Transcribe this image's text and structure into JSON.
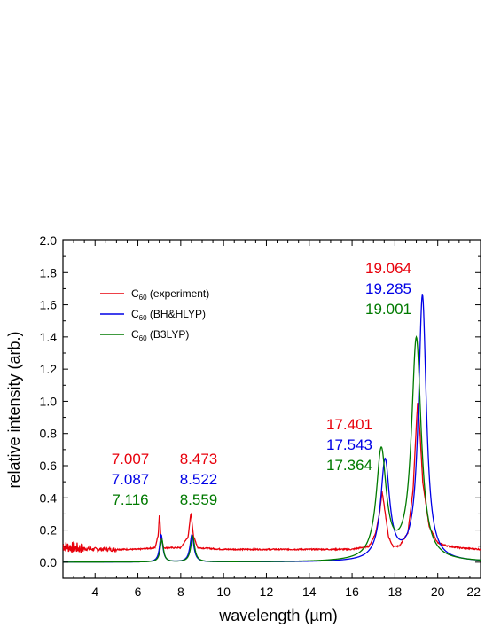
{
  "chart_data": {
    "type": "line",
    "xlabel": "wavelength (µm)",
    "ylabel": "relative intensity (arb.)",
    "xlim": [
      2.5,
      22
    ],
    "ylim": [
      -0.1,
      2.0
    ],
    "xticks": [
      "4",
      "6",
      "8",
      "10",
      "12",
      "14",
      "16",
      "18",
      "20",
      "22"
    ],
    "yticks": [
      "0.0",
      "0.2",
      "0.4",
      "0.6",
      "0.8",
      "1.0",
      "1.2",
      "1.4",
      "1.6",
      "1.8",
      "2.0"
    ],
    "legend_position": "upper-left",
    "series": [
      {
        "name": "C60 (experiment)",
        "legend_base": "C",
        "legend_sub": "60",
        "legend_rest": " (experiment)",
        "color": "#e8000b",
        "x": [
          2.5,
          3.0,
          4.0,
          5.0,
          6.0,
          6.8,
          6.95,
          7.007,
          7.07,
          7.2,
          8.0,
          8.35,
          8.473,
          8.6,
          8.8,
          10.0,
          12.0,
          14.0,
          16.0,
          16.8,
          17.1,
          17.3,
          17.401,
          17.5,
          17.7,
          17.9,
          18.2,
          18.6,
          18.85,
          19.0,
          19.064,
          19.15,
          19.3,
          19.6,
          20.0,
          20.5,
          21.0,
          22.0
        ],
        "y": [
          0.1,
          0.09,
          0.08,
          0.08,
          0.08,
          0.09,
          0.17,
          0.31,
          0.16,
          0.09,
          0.09,
          0.16,
          0.31,
          0.16,
          0.09,
          0.08,
          0.08,
          0.08,
          0.08,
          0.1,
          0.18,
          0.32,
          0.44,
          0.35,
          0.16,
          0.1,
          0.1,
          0.18,
          0.45,
          0.85,
          1.0,
          0.85,
          0.5,
          0.22,
          0.12,
          0.1,
          0.09,
          0.08
        ]
      },
      {
        "name": "C60 (BH&HLYP)",
        "legend_base": "C",
        "legend_sub": "60",
        "legend_rest": " (BH&HLYP)",
        "color": "#0000e6",
        "peaks": [
          {
            "x": 7.087,
            "h": 0.17,
            "w": 0.09
          },
          {
            "x": 8.522,
            "h": 0.17,
            "w": 0.11
          },
          {
            "x": 17.543,
            "h": 0.62,
            "w": 0.25
          },
          {
            "x": 19.285,
            "h": 1.65,
            "w": 0.22
          }
        ]
      },
      {
        "name": "C60 (B3LYP)",
        "legend_base": "C",
        "legend_sub": "60",
        "legend_rest": " (B3LYP)",
        "color": "#007a00",
        "peaks": [
          {
            "x": 7.116,
            "h": 0.14,
            "w": 0.09
          },
          {
            "x": 8.559,
            "h": 0.16,
            "w": 0.11
          },
          {
            "x": 17.364,
            "h": 0.68,
            "w": 0.28
          },
          {
            "x": 19.001,
            "h": 1.38,
            "w": 0.27
          }
        ]
      }
    ],
    "annotations": [
      {
        "group": "7",
        "red": "7.007",
        "blue": "7.087",
        "green": "7.116"
      },
      {
        "group": "8",
        "red": "8.473",
        "blue": "8.522",
        "green": "8.559"
      },
      {
        "group": "17",
        "red": "17.401",
        "blue": "17.543",
        "green": "17.364"
      },
      {
        "group": "19",
        "red": "19.064",
        "blue": "19.285",
        "green": "19.001"
      }
    ],
    "colors": {
      "red": "#e8000b",
      "blue": "#0000e6",
      "green": "#007a00"
    }
  }
}
